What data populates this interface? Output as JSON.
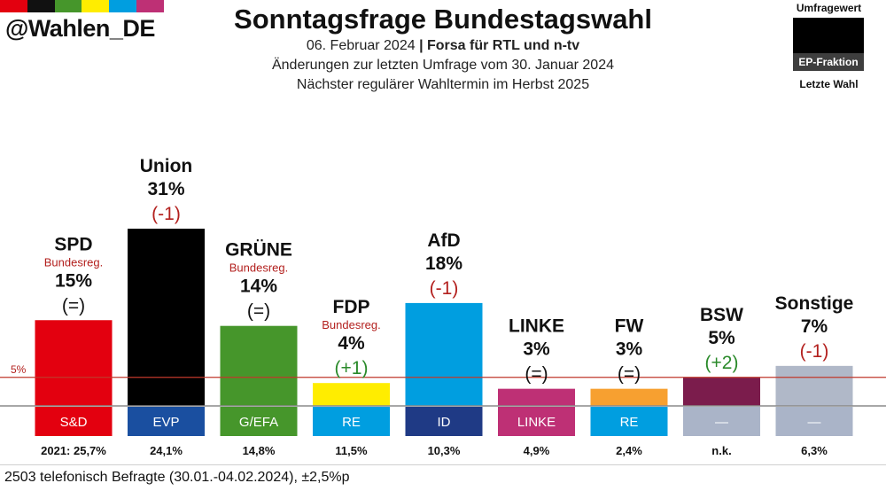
{
  "brand": {
    "handle": "@Wahlen_DE",
    "strip_colors": [
      "#e3000f",
      "#111111",
      "#46962b",
      "#ffed00",
      "#009ee0",
      "#be3075"
    ]
  },
  "header": {
    "title": "Sonntagsfrage Bundestagswahl",
    "date": "06. Februar 2024",
    "separator": "|",
    "institute": "Forsa für RTL und n-tv",
    "line2": "Änderungen zur letzten Umfrage vom 30. Januar 2024",
    "line3": "Nächster regulärer Wahltermin im Herbst 2025"
  },
  "legend": {
    "top": "Umfragewert",
    "band": "EP-Fraktion",
    "bottom": "Letzte Wahl"
  },
  "footnote": "2503 telefonisch Befragte (30.01.-04.02.2024), ±2,5%p",
  "chart_data": {
    "type": "bar",
    "title": "Sonntagsfrage Bundestagswahl",
    "unit": "%",
    "threshold": {
      "value": 5,
      "label": "5%"
    },
    "categories": [
      "SPD",
      "Union",
      "GRÜNE",
      "FDP",
      "AfD",
      "LINKE",
      "FW",
      "BSW",
      "Sonstige"
    ],
    "values": [
      15,
      31,
      14,
      4,
      18,
      3,
      3,
      5,
      7
    ],
    "value_labels": [
      "15%",
      "31%",
      "14%",
      "4%",
      "18%",
      "3%",
      "3%",
      "5%",
      "7%"
    ],
    "changes": [
      "(=)",
      "(-1)",
      "(=)",
      "(+1)",
      "(-1)",
      "(=)",
      "(=)",
      "(+2)",
      "(-1)"
    ],
    "change_direction": [
      "same",
      "down",
      "same",
      "up",
      "down",
      "same",
      "same",
      "up",
      "down"
    ],
    "government": [
      "Bundesreg.",
      "",
      "Bundesreg.",
      "Bundesreg.",
      "",
      "",
      "",
      "",
      ""
    ],
    "ep_faction": [
      "S&D",
      "EVP",
      "G/EFA",
      "RE",
      "ID",
      "LINKE",
      "RE",
      "—",
      "—"
    ],
    "last_election": [
      "2021: 25,7%",
      "24,1%",
      "14,8%",
      "11,5%",
      "10,3%",
      "4,9%",
      "2,4%",
      "n.k.",
      "6,3%"
    ],
    "bar_colors": [
      "#e3000f",
      "#000000",
      "#46962b",
      "#ffed00",
      "#009ee0",
      "#be3075",
      "#f7a030",
      "#7b1c4c",
      "#b0b8c8"
    ],
    "faction_colors": [
      "#e3000f",
      "#1a4fa0",
      "#46962b",
      "#009ee0",
      "#1f3a85",
      "#be3075",
      "#009ee0",
      "#aab4c8",
      "#aab4c8"
    ],
    "change_colors": {
      "same": "#111111",
      "down": "#b3201e",
      "up": "#2a8a2a"
    },
    "ylim": [
      0,
      31
    ]
  }
}
